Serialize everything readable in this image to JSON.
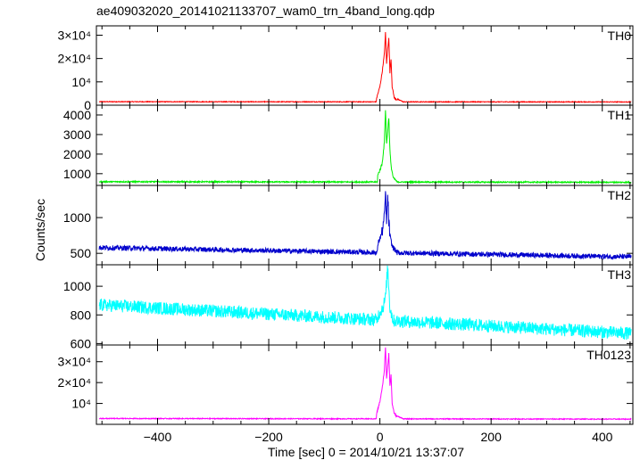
{
  "chart_data": {
    "type": "line",
    "title": "ae409032020_20141021133707_wam0_trn_4band_long.qdp",
    "xlabel": "Time [sec] 0 = 2014/10/21 13:37:07",
    "ylabel": "Counts/sec",
    "xlim": [
      -510,
      455
    ],
    "xticks": [
      -400,
      -200,
      0,
      200,
      400
    ],
    "grid": false,
    "panels": [
      {
        "name": "TH0",
        "color": "#ff0000",
        "ylim": [
          0,
          34000
        ],
        "yticks": [
          0,
          10000,
          20000,
          30000
        ],
        "ytick_labels": [
          "0",
          "10⁴",
          "2×10⁴",
          "3×10⁴"
        ],
        "baseline": 1500,
        "baseline_end": 1400,
        "noise": 150,
        "x": [
          -6,
          0,
          4,
          8,
          10,
          12,
          14,
          16,
          18,
          20,
          22,
          26,
          30,
          40
        ],
        "y": [
          3000,
          8000,
          14000,
          22000,
          31000,
          18000,
          24000,
          29000,
          14000,
          20000,
          8000,
          3000,
          2500,
          1800
        ]
      },
      {
        "name": "TH1",
        "color": "#00ee00",
        "ylim": [
          400,
          4500
        ],
        "yticks": [
          1000,
          2000,
          3000,
          4000
        ],
        "ytick_labels": [
          "1000",
          "2000",
          "3000",
          "4000"
        ],
        "baseline": 590,
        "baseline_end": 560,
        "noise": 30,
        "x": [
          -4,
          4,
          8,
          10,
          12,
          14,
          16,
          18,
          20,
          24,
          30
        ],
        "y": [
          900,
          1500,
          2600,
          4300,
          2500,
          3200,
          3900,
          2200,
          1400,
          800,
          620
        ]
      },
      {
        "name": "TH2",
        "color": "#0000cc",
        "ylim": [
          340,
          1450
        ],
        "yticks": [
          500,
          1000
        ],
        "ytick_labels": [
          "500",
          "1000"
        ],
        "baseline": 580,
        "baseline_end": 450,
        "noise": 35,
        "x": [
          -4,
          4,
          8,
          10,
          12,
          14,
          16,
          18,
          22,
          30
        ],
        "y": [
          620,
          800,
          1000,
          1350,
          900,
          1300,
          950,
          750,
          600,
          520
        ]
      },
      {
        "name": "TH3",
        "color": "#00ffff",
        "ylim": [
          590,
          1150
        ],
        "yticks": [
          600,
          800,
          1000
        ],
        "ytick_labels": [
          "600",
          "800",
          "1000"
        ],
        "baseline": 870,
        "baseline_end": 670,
        "noise": 45,
        "x": [
          -4,
          6,
          10,
          14,
          18,
          24
        ],
        "y": [
          790,
          860,
          920,
          1140,
          850,
          760
        ]
      },
      {
        "name": "TH0123",
        "color": "#ff00ff",
        "ylim": [
          0,
          38000
        ],
        "yticks": [
          10000,
          20000,
          30000
        ],
        "ytick_labels": [
          "10⁴",
          "2×10⁴",
          "3×10⁴"
        ],
        "baseline": 2800,
        "baseline_end": 2500,
        "noise": 200,
        "x": [
          -6,
          0,
          4,
          8,
          10,
          12,
          14,
          16,
          18,
          20,
          22,
          26,
          30,
          40
        ],
        "y": [
          5000,
          11000,
          17000,
          26000,
          37000,
          22000,
          28000,
          34000,
          18000,
          24000,
          10000,
          5000,
          4000,
          3000
        ]
      }
    ]
  }
}
